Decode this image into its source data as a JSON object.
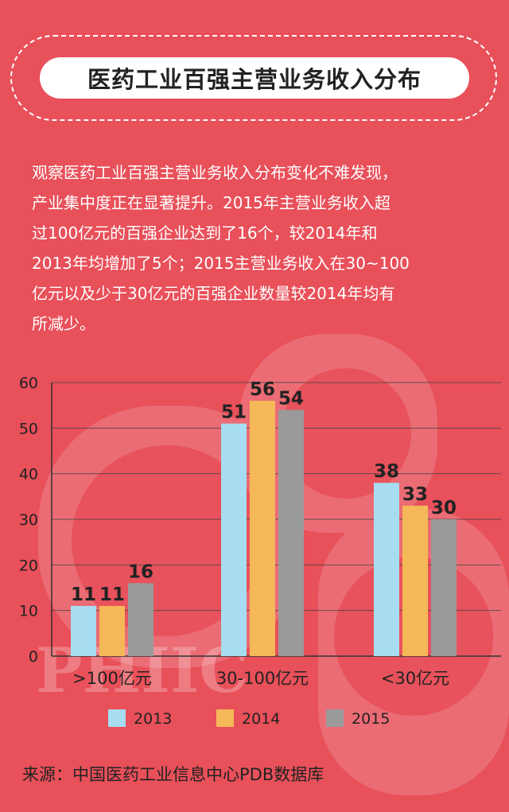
{
  "title": "医药工业百强主营业务收入分布",
  "intro": "观察医药工业百强主营业务收入分布变化不难发现，\n产业集中度正在显著提升。2015年主营业务收入超\n过100亿元的百强企业达到了16个，较2014年和\n2013年均增加了5个；2015主营业务收入在30~100\n亿元以及少于30亿元的百强企业数量较2014年均有\n所减少。",
  "source": "来源：中国医药工业信息中心PDB数据库",
  "watermark": "PHIIC",
  "colors": {
    "background": "#e8505a",
    "series": [
      "#a8dcf0",
      "#f5b858",
      "#9a9a9a"
    ]
  },
  "chart_data": {
    "type": "bar",
    "categories": [
      ">100亿元",
      "30-100亿元",
      "<30亿元"
    ],
    "series": [
      {
        "name": "2013",
        "values": [
          11,
          51,
          38
        ]
      },
      {
        "name": "2014",
        "values": [
          11,
          56,
          33
        ]
      },
      {
        "name": "2015",
        "values": [
          16,
          54,
          30
        ]
      }
    ],
    "ylim": [
      0,
      60
    ],
    "yticks": [
      0,
      10,
      20,
      30,
      40,
      50,
      60
    ],
    "grid": true,
    "legend": "bottom"
  }
}
